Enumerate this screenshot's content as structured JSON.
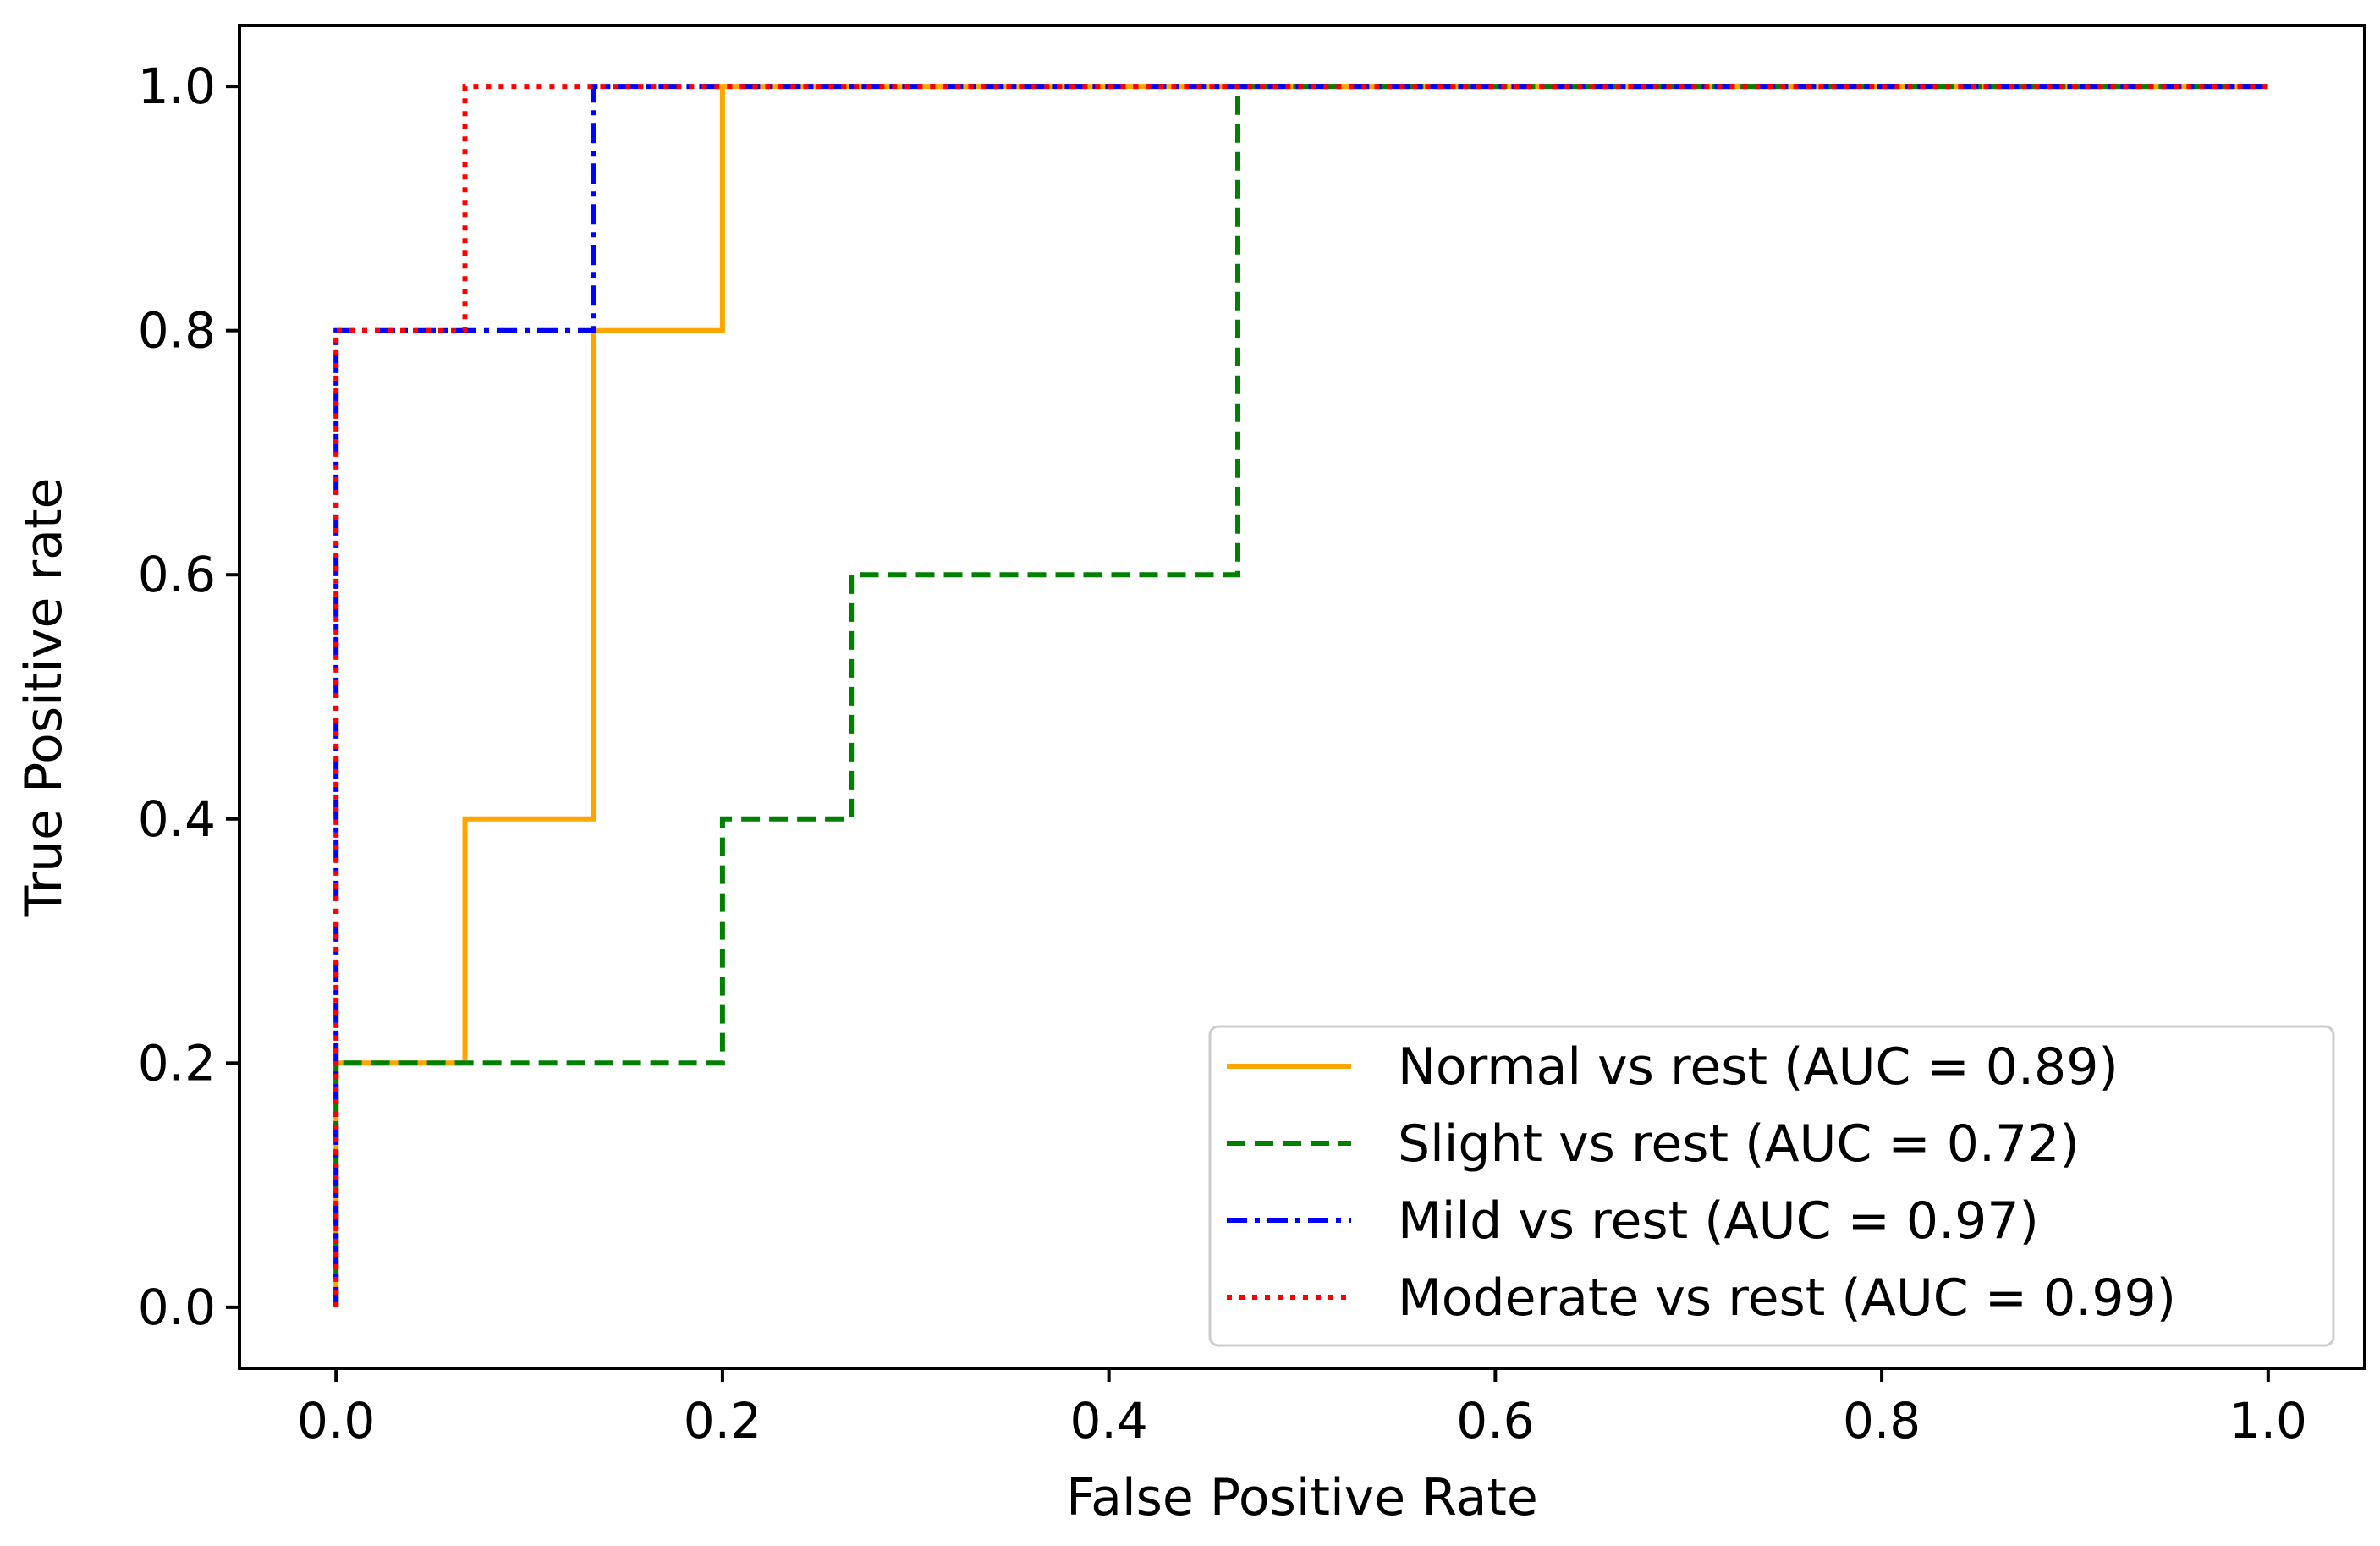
{
  "chart_data": {
    "type": "line",
    "title": "",
    "xlabel": "False Positive Rate",
    "ylabel": "True Positive rate",
    "xlim": [
      -0.05,
      1.05
    ],
    "ylim": [
      -0.05,
      1.05
    ],
    "x_ticks": [
      0.0,
      0.2,
      0.4,
      0.6,
      0.8,
      1.0
    ],
    "x_tick_labels": [
      "0.0",
      "0.2",
      "0.4",
      "0.6",
      "0.8",
      "1.0"
    ],
    "y_ticks": [
      0.0,
      0.2,
      0.4,
      0.6,
      0.8,
      1.0
    ],
    "y_tick_labels": [
      "0.0",
      "0.2",
      "0.4",
      "0.6",
      "0.8",
      "1.0"
    ],
    "grid": false,
    "legend_position": "lower-right",
    "series": [
      {
        "name": "Normal vs rest (AUC = 0.89)",
        "color": "#ffa500",
        "style": "solid",
        "x": [
          0.0,
          0.0,
          0.0667,
          0.0667,
          0.1333,
          0.1333,
          0.2,
          0.2,
          1.0
        ],
        "y": [
          0.0,
          0.2,
          0.2,
          0.4,
          0.4,
          0.8,
          0.8,
          1.0,
          1.0
        ]
      },
      {
        "name": "Slight vs rest (AUC = 0.72)",
        "color": "#008000",
        "style": "dashed",
        "x": [
          0.0,
          0.0,
          0.2,
          0.2,
          0.2667,
          0.2667,
          0.4667,
          0.4667,
          1.0
        ],
        "y": [
          0.0,
          0.2,
          0.2,
          0.4,
          0.4,
          0.6,
          0.6,
          1.0,
          1.0
        ]
      },
      {
        "name": "Mild vs rest (AUC = 0.97)",
        "color": "#0000ff",
        "style": "dashdot",
        "x": [
          0.0,
          0.0,
          0.1333,
          0.1333,
          1.0
        ],
        "y": [
          0.0,
          0.8,
          0.8,
          1.0,
          1.0
        ]
      },
      {
        "name": "Moderate vs rest (AUC = 0.99)",
        "color": "#ff0000",
        "style": "dotted",
        "x": [
          0.0,
          0.0,
          0.0667,
          0.0667,
          1.0
        ],
        "y": [
          0.0,
          0.8,
          0.8,
          1.0,
          1.0
        ]
      }
    ]
  }
}
